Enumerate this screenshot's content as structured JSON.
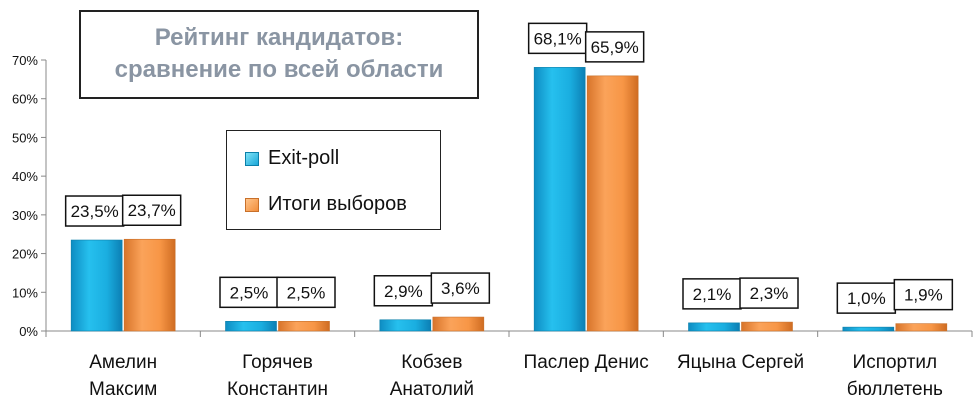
{
  "chart_data": {
    "type": "bar",
    "title": "Рейтинг кандидатов:\nсравнение по всей области",
    "title_lines": [
      "Рейтинг кандидатов:",
      "сравнение по всей области"
    ],
    "categories": [
      [
        "Амелин",
        "Максим"
      ],
      [
        "Горячев",
        "Константин"
      ],
      [
        "Кобзев",
        "Анатолий"
      ],
      [
        "Паслер Денис"
      ],
      [
        "Яцына Сергей"
      ],
      [
        "Испортил",
        "бюллетень"
      ]
    ],
    "series": [
      {
        "name": "Exit-poll",
        "values": [
          23.5,
          2.5,
          2.9,
          68.1,
          2.1,
          1.0
        ],
        "labels": [
          "23,5%",
          "2,5%",
          "2,9%",
          "68,1%",
          "2,1%",
          "1,0%"
        ],
        "color": "#1eb4e6"
      },
      {
        "name": "Итоги выборов",
        "values": [
          23.7,
          2.5,
          3.6,
          65.9,
          2.3,
          1.9
        ],
        "labels": [
          "23,7%",
          "2,5%",
          "3,6%",
          "65,9%",
          "2,3%",
          "1,9%"
        ],
        "color": "#f79646"
      }
    ],
    "ylim": [
      0,
      70
    ],
    "yticks": [
      0,
      10,
      20,
      30,
      40,
      50,
      60,
      70
    ],
    "ytick_labels": [
      "0%",
      "10%",
      "20%",
      "30%",
      "40%",
      "50%",
      "60%",
      "70%"
    ],
    "grid": false,
    "legend_position": "center-left"
  }
}
